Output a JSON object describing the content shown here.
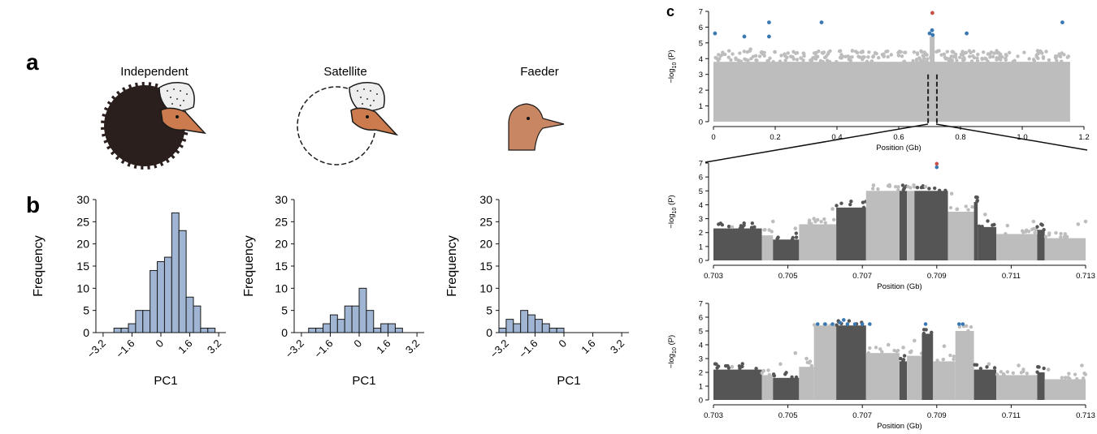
{
  "panel_labels": {
    "a": "a",
    "b": "b",
    "c": "c"
  },
  "morph_titles": [
    "Independent",
    "Satellite",
    "Faeder"
  ],
  "colors": {
    "hist_fill": "#9fb5d3",
    "hist_stroke": "#1a1a1a",
    "manhattan_light": "#bdbdbd",
    "manhattan_dark": "#555555",
    "sig_blue": "#3a78b4",
    "sig_red": "#c8504a",
    "independent_body": "#2a1f1c",
    "head_skin": "#cc7b4e",
    "faeder_head": "#c98663"
  },
  "chart_data": [
    {
      "type": "bar",
      "name": "Independent",
      "xlabel": "PC1",
      "ylabel": "Frequency",
      "ylim": [
        0,
        30
      ],
      "yticks": [
        "0",
        "5",
        "10",
        "15",
        "20",
        "25",
        "30"
      ],
      "xticks": [
        "−3.2",
        "−1.6",
        "0",
        "1.6",
        "3.2"
      ],
      "xtick_values": [
        -3.2,
        -1.6,
        0,
        1.6,
        3.2
      ],
      "bin_width": 0.4,
      "bin_start": -3.0,
      "values": [
        0,
        1,
        1,
        2,
        5,
        5,
        14,
        16,
        17,
        27,
        23,
        8,
        6,
        1,
        1
      ]
    },
    {
      "type": "bar",
      "name": "Satellite",
      "xlabel": "PC1",
      "ylabel": "Frequency",
      "ylim": [
        0,
        30
      ],
      "yticks": [
        "0",
        "5",
        "10",
        "15",
        "20",
        "25",
        "30"
      ],
      "xticks": [
        "−3.2",
        "−1.6",
        "0",
        "1.6",
        "3.2"
      ],
      "xtick_values": [
        -3.2,
        -1.6,
        0,
        1.6,
        3.2
      ],
      "bin_width": 0.4,
      "bin_start": -2.8,
      "values": [
        1,
        1,
        2,
        4,
        3,
        6,
        6,
        10,
        5,
        1,
        2,
        2,
        1
      ]
    },
    {
      "type": "bar",
      "name": "Faeder",
      "xlabel": "PC1",
      "ylabel": "Frequency",
      "ylim": [
        0,
        30
      ],
      "yticks": [
        "0",
        "5",
        "10",
        "15",
        "20",
        "25",
        "30"
      ],
      "xticks": [
        "−3.2",
        "−1.6",
        "0",
        "1.6",
        "3.2"
      ],
      "xtick_values": [
        -3.2,
        -1.6,
        0,
        1.6,
        3.2
      ],
      "bin_width": 0.4,
      "bin_start": -3.6,
      "values": [
        1,
        3,
        2,
        5,
        4,
        3,
        2,
        1,
        1
      ]
    },
    {
      "type": "scatter",
      "name": "genome-wide",
      "xlabel": "Position (Gb)",
      "ylabel_main": "−log",
      "ylabel_sub": "10",
      "ylabel_tail": " (P)",
      "xlim": [
        0,
        1.2
      ],
      "ylim": [
        0,
        7
      ],
      "xticks": [
        "0",
        "0.2",
        "0.4",
        "0.6",
        "0.8",
        "1.0",
        "1.2"
      ],
      "xtick_values": [
        0,
        0.2,
        0.4,
        0.6,
        0.8,
        1.0,
        1.2
      ],
      "yticks": [
        "0",
        "1",
        "2",
        "3",
        "4",
        "5",
        "6",
        "7"
      ],
      "background_ceiling": 3.8,
      "highlight_region": [
        0.703,
        0.713
      ],
      "significant_points": [
        {
          "x": 0.005,
          "y": 5.6
        },
        {
          "x": 0.1,
          "y": 5.4
        },
        {
          "x": 0.18,
          "y": 6.3
        },
        {
          "x": 0.18,
          "y": 5.4
        },
        {
          "x": 0.35,
          "y": 6.3
        },
        {
          "x": 0.7,
          "y": 5.6
        },
        {
          "x": 0.708,
          "y": 5.8
        },
        {
          "x": 0.71,
          "y": 5.5
        },
        {
          "x": 0.82,
          "y": 5.6
        },
        {
          "x": 1.13,
          "y": 6.3
        }
      ],
      "red_points": [
        {
          "x": 0.709,
          "y": 6.9
        }
      ],
      "scattered_points": [
        {
          "x": 0.12,
          "y": 4.6
        },
        {
          "x": 0.16,
          "y": 4.3
        },
        {
          "x": 0.45,
          "y": 4.5
        },
        {
          "x": 0.6,
          "y": 4.2
        },
        {
          "x": 0.9,
          "y": 4.4
        },
        {
          "x": 1.05,
          "y": 4.5
        }
      ]
    },
    {
      "type": "scatter",
      "name": "zoom-1",
      "xlabel": "Position (Gb)",
      "ylabel_main": "−log",
      "ylabel_sub": "10",
      "ylabel_tail": " (P)",
      "xlim": [
        0.703,
        0.713
      ],
      "ylim": [
        0,
        7
      ],
      "xticks": [
        "0.703",
        "0.705",
        "0.707",
        "0.709",
        "0.711",
        "0.713"
      ],
      "xtick_values": [
        0.703,
        0.705,
        0.707,
        0.709,
        0.711,
        0.713
      ],
      "yticks": [
        "0",
        "1",
        "2",
        "3",
        "4",
        "5",
        "6",
        "7"
      ],
      "segments": [
        {
          "x0": 0.703,
          "x1": 0.7043,
          "h": 2.3,
          "tone": "dark"
        },
        {
          "x0": 0.7043,
          "x1": 0.7046,
          "h": 1.8,
          "tone": "light"
        },
        {
          "x0": 0.7046,
          "x1": 0.7053,
          "h": 1.5,
          "tone": "dark"
        },
        {
          "x0": 0.7053,
          "x1": 0.7063,
          "h": 2.6,
          "tone": "light"
        },
        {
          "x0": 0.7063,
          "x1": 0.7071,
          "h": 3.8,
          "tone": "dark"
        },
        {
          "x0": 0.7071,
          "x1": 0.708,
          "h": 5.0,
          "tone": "light"
        },
        {
          "x0": 0.708,
          "x1": 0.7082,
          "h": 5.0,
          "tone": "dark"
        },
        {
          "x0": 0.7082,
          "x1": 0.7084,
          "h": 5.0,
          "tone": "light"
        },
        {
          "x0": 0.7084,
          "x1": 0.7093,
          "h": 5.0,
          "tone": "dark"
        },
        {
          "x0": 0.7093,
          "x1": 0.71,
          "h": 3.5,
          "tone": "light"
        },
        {
          "x0": 0.71,
          "x1": 0.7101,
          "h": 4.2,
          "tone": "dark"
        },
        {
          "x0": 0.7101,
          "x1": 0.7106,
          "h": 2.4,
          "tone": "dark"
        },
        {
          "x0": 0.7106,
          "x1": 0.7117,
          "h": 1.9,
          "tone": "light"
        },
        {
          "x0": 0.7117,
          "x1": 0.7119,
          "h": 2.2,
          "tone": "dark"
        },
        {
          "x0": 0.7119,
          "x1": 0.713,
          "h": 1.6,
          "tone": "light"
        }
      ],
      "red_points": [
        {
          "x": 0.709,
          "y": 6.95
        }
      ],
      "blue_points": [
        {
          "x": 0.709,
          "y": 6.7
        }
      ],
      "scattered_points": [
        {
          "x": 0.7035,
          "y": 2.4
        },
        {
          "x": 0.7046,
          "y": 2.8
        },
        {
          "x": 0.7052,
          "y": 2.3
        },
        {
          "x": 0.7057,
          "y": 3.0
        },
        {
          "x": 0.7062,
          "y": 3.7
        },
        {
          "x": 0.7073,
          "y": 5.4
        },
        {
          "x": 0.7087,
          "y": 5.3
        },
        {
          "x": 0.7094,
          "y": 4.8
        },
        {
          "x": 0.7103,
          "y": 3.3
        },
        {
          "x": 0.7109,
          "y": 2.5
        },
        {
          "x": 0.7116,
          "y": 2.8
        },
        {
          "x": 0.7128,
          "y": 2.6
        },
        {
          "x": 0.713,
          "y": 2.8
        }
      ]
    },
    {
      "type": "scatter",
      "name": "zoom-2",
      "xlabel": "Position (Gb)",
      "ylabel_main": "−log",
      "ylabel_sub": "10",
      "ylabel_tail": " (P)",
      "xlim": [
        0.703,
        0.713
      ],
      "ylim": [
        0,
        7
      ],
      "xticks": [
        "0.703",
        "0.705",
        "0.707",
        "0.709",
        "0.711",
        "0.713"
      ],
      "xtick_values": [
        0.703,
        0.705,
        0.707,
        0.709,
        0.711,
        0.713
      ],
      "yticks": [
        "0",
        "1",
        "2",
        "3",
        "4",
        "5",
        "6",
        "7"
      ],
      "segments": [
        {
          "x0": 0.703,
          "x1": 0.7043,
          "h": 2.2,
          "tone": "dark"
        },
        {
          "x0": 0.7043,
          "x1": 0.7046,
          "h": 1.8,
          "tone": "light"
        },
        {
          "x0": 0.7046,
          "x1": 0.7053,
          "h": 1.6,
          "tone": "dark"
        },
        {
          "x0": 0.7053,
          "x1": 0.7057,
          "h": 2.4,
          "tone": "light"
        },
        {
          "x0": 0.7057,
          "x1": 0.7063,
          "h": 5.4,
          "tone": "light"
        },
        {
          "x0": 0.7063,
          "x1": 0.7071,
          "h": 5.4,
          "tone": "dark"
        },
        {
          "x0": 0.7071,
          "x1": 0.708,
          "h": 3.4,
          "tone": "light"
        },
        {
          "x0": 0.708,
          "x1": 0.7082,
          "h": 2.8,
          "tone": "dark"
        },
        {
          "x0": 0.7082,
          "x1": 0.7086,
          "h": 3.2,
          "tone": "light"
        },
        {
          "x0": 0.7086,
          "x1": 0.7089,
          "h": 4.8,
          "tone": "dark"
        },
        {
          "x0": 0.7089,
          "x1": 0.7095,
          "h": 2.8,
          "tone": "light"
        },
        {
          "x0": 0.7095,
          "x1": 0.71,
          "h": 5.0,
          "tone": "light"
        },
        {
          "x0": 0.71,
          "x1": 0.7106,
          "h": 2.2,
          "tone": "dark"
        },
        {
          "x0": 0.7106,
          "x1": 0.7117,
          "h": 1.8,
          "tone": "light"
        },
        {
          "x0": 0.7117,
          "x1": 0.7119,
          "h": 2.0,
          "tone": "dark"
        },
        {
          "x0": 0.7119,
          "x1": 0.713,
          "h": 1.5,
          "tone": "light"
        }
      ],
      "blue_points": [
        {
          "x": 0.7058,
          "y": 5.5
        },
        {
          "x": 0.706,
          "y": 5.5
        },
        {
          "x": 0.7062,
          "y": 5.5
        },
        {
          "x": 0.7064,
          "y": 5.6
        },
        {
          "x": 0.7065,
          "y": 5.8
        },
        {
          "x": 0.7066,
          "y": 5.5
        },
        {
          "x": 0.7068,
          "y": 5.5
        },
        {
          "x": 0.707,
          "y": 5.5
        },
        {
          "x": 0.7072,
          "y": 5.5
        },
        {
          "x": 0.7087,
          "y": 5.5
        },
        {
          "x": 0.7096,
          "y": 5.5
        },
        {
          "x": 0.7097,
          "y": 5.5
        }
      ],
      "scattered_points": [
        {
          "x": 0.7035,
          "y": 2.4
        },
        {
          "x": 0.7048,
          "y": 2.6
        },
        {
          "x": 0.7052,
          "y": 3.4
        },
        {
          "x": 0.7055,
          "y": 3.0
        },
        {
          "x": 0.7077,
          "y": 4.0
        },
        {
          "x": 0.7081,
          "y": 3.8
        },
        {
          "x": 0.7084,
          "y": 4.3
        },
        {
          "x": 0.7092,
          "y": 3.9
        },
        {
          "x": 0.7104,
          "y": 2.6
        },
        {
          "x": 0.7112,
          "y": 2.5
        },
        {
          "x": 0.712,
          "y": 2.2
        },
        {
          "x": 0.7129,
          "y": 2.5
        }
      ]
    }
  ]
}
